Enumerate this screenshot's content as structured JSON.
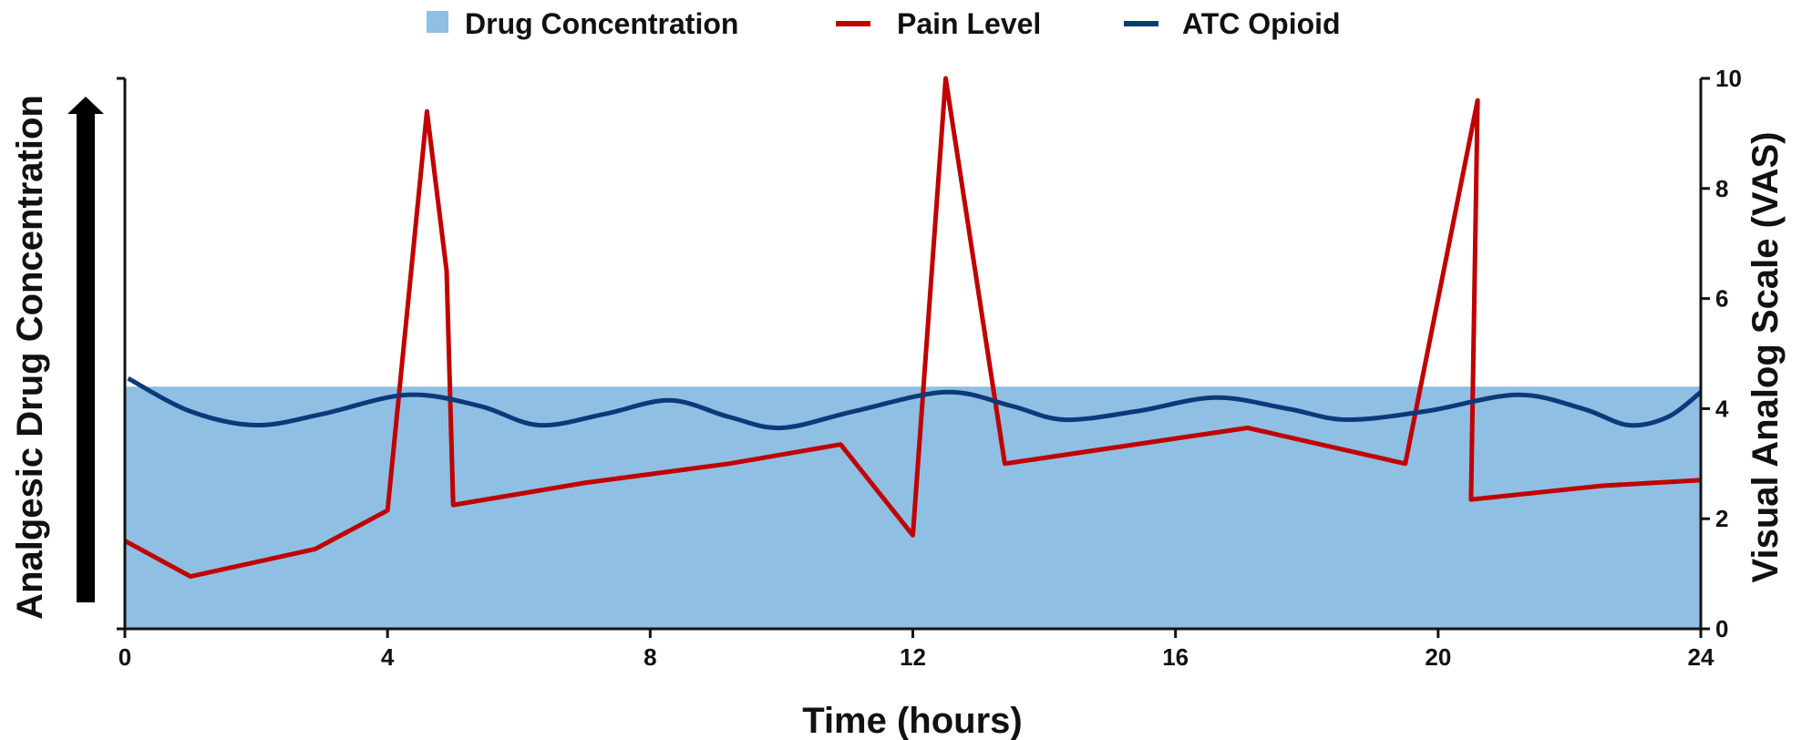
{
  "chart_data": {
    "type": "line",
    "title": "",
    "xlabel": "Time (hours)",
    "ylabel_left": "Analgesic Drug Concentration",
    "ylabel_right": "Visual Analog Scale (VAS)",
    "xlim": [
      0,
      24
    ],
    "ylim_right": [
      0,
      10
    ],
    "x_ticks": [
      "0",
      "4",
      "8",
      "12",
      "16",
      "20",
      "24"
    ],
    "y_right_ticks": [
      "0",
      "2",
      "4",
      "6",
      "8",
      "10"
    ],
    "grid": false,
    "legend_position": "top-center",
    "legend": [
      "Drug Concentration",
      "Pain Level",
      "ATC Opioid"
    ],
    "colors": {
      "drug_concentration": "#8fbfe3",
      "pain_level": "#c00000",
      "atc_opioid": "#0b3a7a"
    },
    "drug_concentration_level": 4.4,
    "series": [
      {
        "name": "Pain Level",
        "x": [
          0,
          1,
          2.9,
          4.0,
          4.6,
          4.9,
          5.0,
          7.0,
          9.2,
          10.9,
          12.0,
          12.5,
          13.4,
          17.1,
          19.5,
          20.6,
          20.5,
          22.5,
          24
        ],
        "y": [
          1.6,
          0.95,
          1.45,
          2.15,
          9.4,
          6.5,
          2.25,
          2.65,
          3.0,
          3.35,
          1.7,
          10.0,
          3.0,
          3.65,
          3.0,
          9.6,
          2.35,
          2.6,
          2.7
        ]
      },
      {
        "name": "ATC Opioid",
        "x": [
          0.05,
          1.0,
          2.0,
          3.0,
          4.3,
          5.4,
          6.3,
          7.3,
          8.3,
          9.2,
          10.0,
          11.1,
          12.5,
          13.5,
          14.3,
          15.4,
          16.6,
          17.7,
          18.6,
          19.8,
          21.2,
          22.2,
          22.9,
          23.5,
          24.0
        ],
        "y": [
          4.55,
          3.95,
          3.7,
          3.9,
          4.25,
          4.05,
          3.7,
          3.9,
          4.15,
          3.85,
          3.65,
          3.95,
          4.3,
          4.05,
          3.8,
          3.95,
          4.2,
          4.0,
          3.8,
          3.95,
          4.25,
          4.0,
          3.7,
          3.85,
          4.3
        ]
      }
    ]
  }
}
